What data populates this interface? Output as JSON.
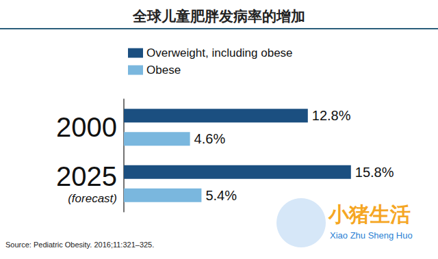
{
  "chart_data": {
    "type": "bar",
    "title": "全球儿童肥胖发病率的增加",
    "orientation": "horizontal",
    "categories": [
      "2000",
      "2025\n(forecast)"
    ],
    "series": [
      {
        "name": "Overweight, including obese",
        "color": "#1b4f80",
        "values": [
          12.8,
          15.8
        ],
        "value_labels": [
          "12.8%",
          "15.8%"
        ]
      },
      {
        "name": "Obese",
        "color": "#7ab7de",
        "values": [
          4.6,
          5.4
        ],
        "value_labels": [
          "4.6%",
          "5.4%"
        ]
      }
    ],
    "xlim": [
      0,
      20
    ],
    "xticks": [
      0,
      20
    ],
    "data_labels": true,
    "tick_labels": "y",
    "legend": "top",
    "grid": false,
    "source": "Source: Pediatric Obesity. 2016;11:321–325.",
    "annotations": [
      "小猪生活",
      "Xiao Zhu Sheng Huo"
    ]
  }
}
